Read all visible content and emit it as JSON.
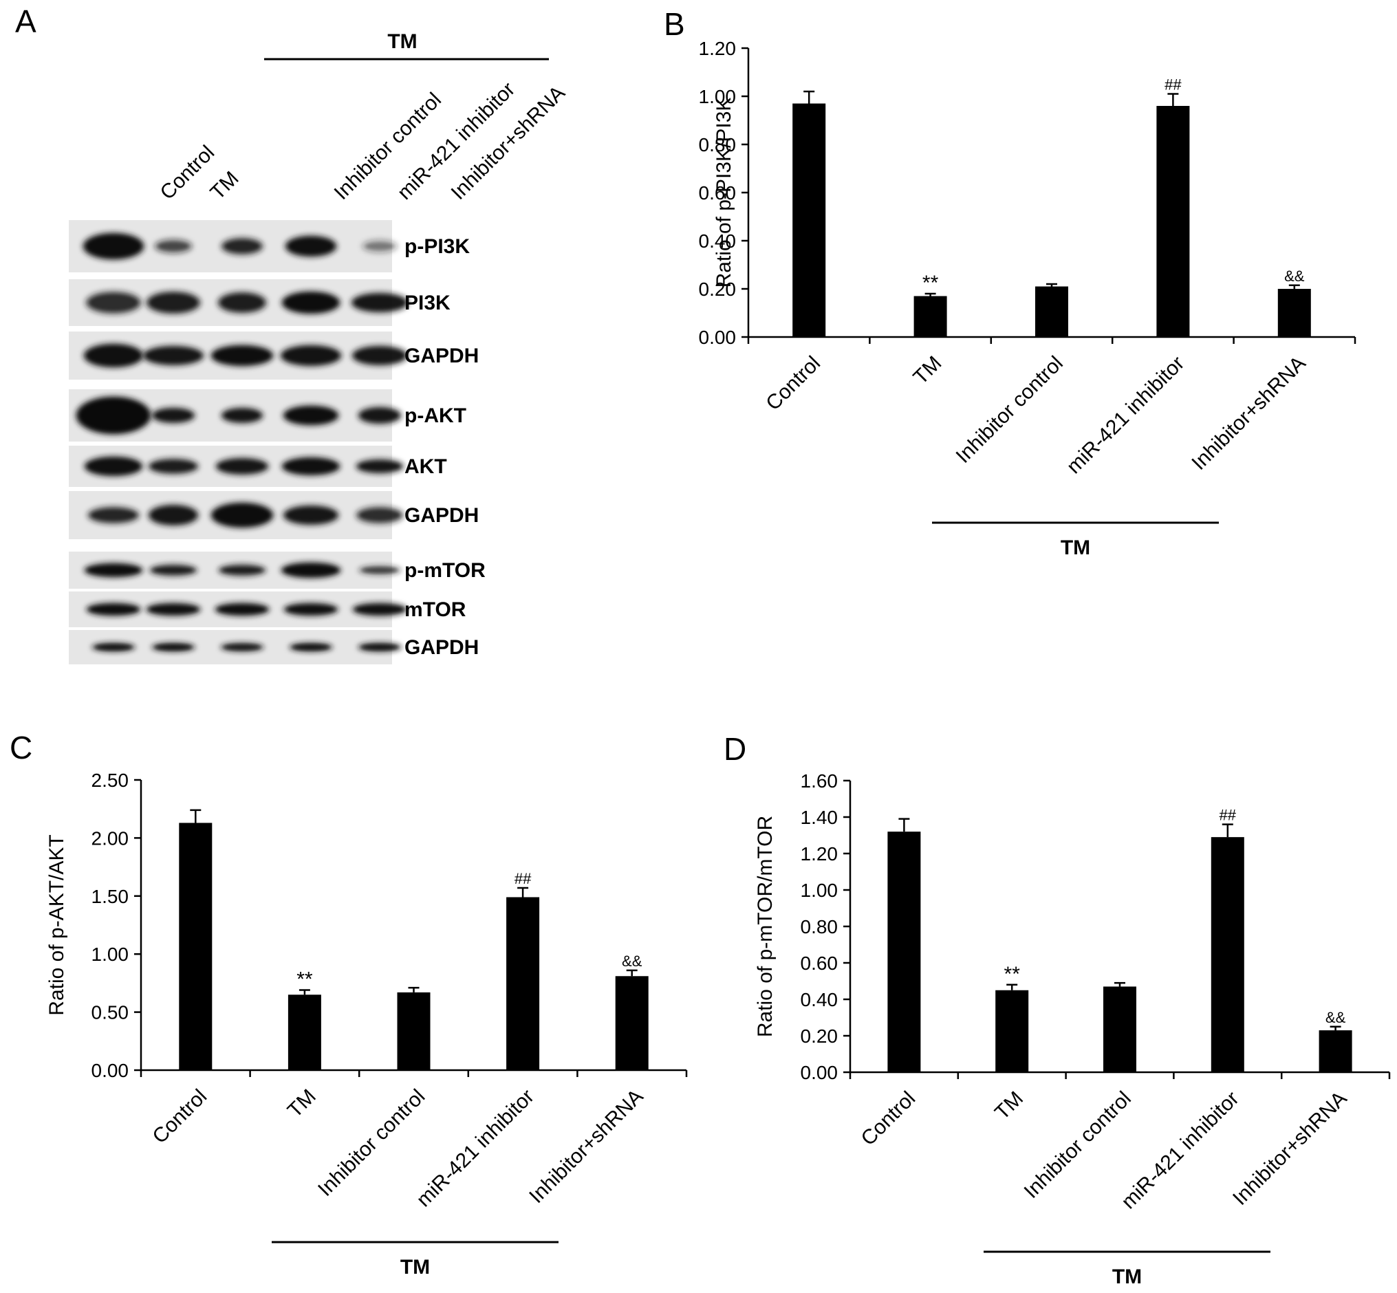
{
  "panel_letters": {
    "a": "A",
    "b": "B",
    "c": "C",
    "d": "D"
  },
  "western_blot": {
    "group_label": "TM",
    "lanes": [
      "Control",
      "TM",
      "Inhibitor control",
      "miR-421 inhibitor",
      "Inhibitor+shRNA"
    ],
    "bands": [
      "p-PI3K",
      "PI3K",
      "GAPDH",
      "p-AKT",
      "AKT",
      "GAPDH",
      "p-mTOR",
      "mTOR",
      "GAPDH"
    ]
  },
  "chart_data": [
    {
      "panel": "B",
      "type": "bar",
      "categories": [
        "Control",
        "TM",
        "Inhibitor control",
        "miR-421 inhibitor",
        "Inhibitor+shRNA"
      ],
      "values": [
        0.97,
        0.17,
        0.21,
        0.96,
        0.2
      ],
      "errors": [
        0.05,
        0.01,
        0.01,
        0.05,
        0.015
      ],
      "significance": [
        "",
        "**",
        "",
        "##",
        "&&"
      ],
      "ylabel": "Ratio of p-PI3K/PI3K",
      "ylim": [
        0,
        1.2
      ],
      "yticks": [
        "0.00",
        "0.20",
        "0.40",
        "0.60",
        "0.80",
        "1.00",
        "1.20"
      ],
      "group_label": "TM",
      "bar_color": "#000000"
    },
    {
      "panel": "C",
      "type": "bar",
      "categories": [
        "Control",
        "TM",
        "Inhibitor control",
        "miR-421 inhibitor",
        "Inhibitor+shRNA"
      ],
      "values": [
        2.13,
        0.65,
        0.67,
        1.49,
        0.81
      ],
      "errors": [
        0.11,
        0.04,
        0.04,
        0.08,
        0.05
      ],
      "significance": [
        "",
        "**",
        "",
        "##",
        "&&"
      ],
      "ylabel": "Ratio of p-AKT/AKT",
      "ylim": [
        0,
        2.5
      ],
      "yticks": [
        "0.00",
        "0.50",
        "1.00",
        "1.50",
        "2.00",
        "2.50"
      ],
      "group_label": "TM",
      "bar_color": "#000000"
    },
    {
      "panel": "D",
      "type": "bar",
      "categories": [
        "Control",
        "TM",
        "Inhibitor control",
        "miR-421 inhibitor",
        "Inhibitor+shRNA"
      ],
      "values": [
        1.32,
        0.45,
        0.47,
        1.29,
        0.23
      ],
      "errors": [
        0.07,
        0.03,
        0.02,
        0.07,
        0.02
      ],
      "significance": [
        "",
        "**",
        "",
        "##",
        "&&"
      ],
      "ylabel": "Ratio of p-mTOR/mTOR",
      "ylim": [
        0,
        1.6
      ],
      "yticks": [
        "0.00",
        "0.20",
        "0.40",
        "0.60",
        "0.80",
        "1.00",
        "1.20",
        "1.40",
        "1.60"
      ],
      "group_label": "TM",
      "bar_color": "#000000"
    }
  ]
}
